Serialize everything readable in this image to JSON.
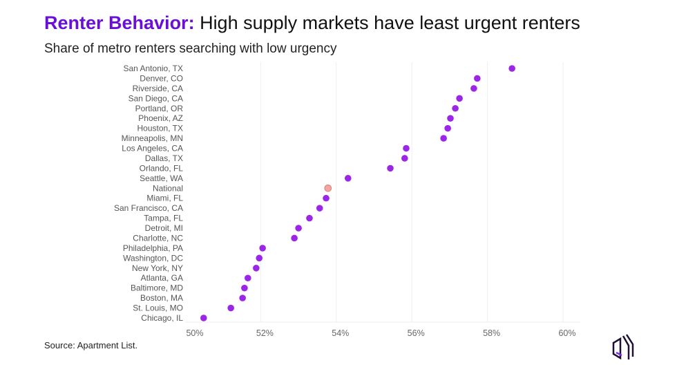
{
  "title": {
    "bold": "Renter Behavior:",
    "rest": " High supply markets have least urgent renters"
  },
  "subtitle": "Share of metro renters searching with low urgency",
  "source": "Source: Apartment List.",
  "colors": {
    "accent": "#6a0fd6",
    "dot": "#9b26e8",
    "national": "#f4a6a0"
  },
  "logo": "apartment-list-logo",
  "chart_data": {
    "type": "scatter",
    "xlim": [
      50,
      60
    ],
    "x_ticks": [
      "50%",
      "52%",
      "54%",
      "56%",
      "58%",
      "60%"
    ],
    "grid": true,
    "categories": [
      "San Antonio, TX",
      "Denver, CO",
      "Riverside, CA",
      "San Diego, CA",
      "Portland, OR",
      "Phoenix, AZ",
      "Houston, TX",
      "Minneapolis, MN",
      "Los Angeles, CA",
      "Dallas, TX",
      "Orlando, FL",
      "Seattle, WA",
      "National",
      "Miami, FL",
      "San Francisco, CA",
      "Tampa, FL",
      "Detroit, MI",
      "Charlotte, NC",
      "Philadelphia, PA",
      "Washington, DC",
      "New York, NY",
      "Atlanta, GA",
      "Baltimore, MD",
      "Boston, MA",
      "St. Louis, MO",
      "Chicago, IL"
    ],
    "values": [
      58.65,
      57.73,
      57.64,
      57.26,
      57.15,
      57.02,
      56.95,
      56.84,
      55.85,
      55.81,
      55.43,
      54.31,
      53.78,
      53.73,
      53.56,
      53.29,
      53.0,
      52.89,
      52.05,
      51.96,
      51.88,
      51.66,
      51.57,
      51.52,
      51.21,
      50.49
    ],
    "highlight": "National"
  }
}
